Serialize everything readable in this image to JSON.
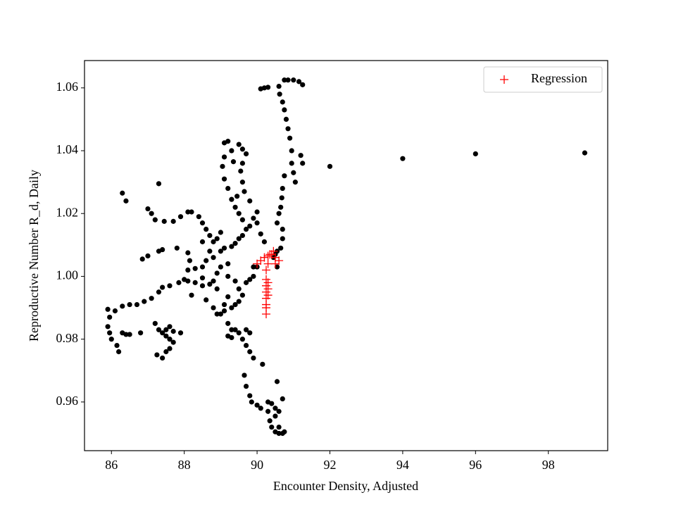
{
  "chart_data": {
    "type": "scatter",
    "x_label": "Encounter Density, Adjusted",
    "y_label": "Reproductive Number R_d, Daily",
    "xlim": [
      85.26,
      99.63
    ],
    "xticks": [
      86,
      88,
      90,
      92,
      94,
      96,
      98
    ],
    "ylim": [
      0.9445,
      1.0687
    ],
    "yticks": [
      0.96,
      0.98,
      {
        "value": 1,
        "label": "1.00"
      },
      1.02,
      1.04,
      1.06
    ],
    "legend": "upper right",
    "series": [
      {
        "color": "#000000",
        "marker": "circle",
        "x": [
          92.0,
          94.0,
          96.0,
          99.0,
          90.1,
          90.2,
          90.3,
          90.75,
          90.85,
          91.0,
          91.15,
          91.25,
          90.6,
          90.62,
          90.7,
          90.75,
          90.8,
          90.85,
          90.9,
          90.95,
          90.95,
          91.0,
          91.05,
          91.2,
          91.25,
          90.75,
          90.7,
          90.68,
          90.65,
          90.6,
          90.55,
          90.7,
          90.7,
          90.65,
          90.55,
          90.5,
          90.45,
          90.55,
          86.3,
          86.4,
          87.3,
          87.0,
          87.1,
          87.2,
          87.45,
          87.7,
          87.9,
          88.1,
          88.2,
          88.4,
          88.5,
          88.6,
          88.7,
          88.8,
          86.85,
          87.0,
          87.3,
          87.4,
          87.8,
          88.1,
          88.15,
          88.1,
          88.0,
          87.85,
          87.6,
          87.4,
          87.3,
          87.1,
          86.9,
          86.7,
          86.5,
          86.3,
          86.1,
          85.9,
          85.95,
          85.9,
          85.95,
          86.0,
          86.15,
          86.2,
          86.3,
          86.4,
          86.5,
          86.8,
          87.2,
          87.3,
          87.4,
          87.5,
          87.6,
          87.7,
          87.6,
          87.5,
          87.4,
          87.25,
          87.7,
          87.9,
          87.5,
          87.6,
          88.1,
          88.3,
          88.5,
          88.7,
          88.9,
          88.2,
          88.6,
          88.8,
          88.9,
          89.0,
          89.1,
          89.3,
          89.4,
          89.5,
          89.6,
          89.7,
          89.8,
          89.9,
          88.5,
          88.6,
          88.8,
          89.0,
          89.1,
          89.3,
          89.4,
          89.5,
          89.6,
          89.7,
          89.8,
          89.6,
          89.5,
          89.4,
          89.3,
          89.2,
          89.1,
          89.05,
          89.1,
          89.1,
          89.2,
          89.3,
          89.35,
          89.5,
          89.6,
          89.7,
          89.6,
          89.55,
          89.6,
          89.65,
          89.45,
          89.8,
          90.0,
          90.0,
          89.9,
          90.1,
          90.2,
          90.0,
          89.9,
          88.9,
          89.0,
          89.2,
          88.7,
          89.0,
          88.9,
          88.5,
          88.3,
          88.5,
          88.8,
          89.2,
          89.4,
          89.5,
          89.2,
          89.1,
          89.2,
          89.3,
          89.4,
          89.5,
          89.7,
          89.8,
          89.6,
          89.7,
          89.8,
          89.9,
          89.3,
          89.2,
          90.15,
          89.65,
          89.7,
          89.8,
          89.85,
          90.0,
          90.1,
          90.3,
          90.4,
          90.5,
          90.6,
          90.55,
          90.7,
          90.3,
          90.35,
          90.4,
          90.5,
          90.6,
          90.7,
          90.75,
          90.6,
          90.5
        ],
        "values": [
          1.035,
          1.0375,
          1.039,
          1.0393,
          1.0597,
          1.06,
          1.0602,
          1.0625,
          1.0625,
          1.0625,
          1.062,
          1.061,
          1.0605,
          1.058,
          1.0555,
          1.053,
          1.05,
          1.047,
          1.044,
          1.04,
          1.036,
          1.033,
          1.03,
          1.0385,
          1.036,
          1.032,
          1.028,
          1.025,
          1.022,
          1.02,
          1.017,
          1.015,
          1.012,
          1.009,
          1.008,
          1.007,
          1.006,
          1.003,
          1.0265,
          1.024,
          1.0295,
          1.0215,
          1.02,
          1.018,
          1.0175,
          1.0175,
          1.019,
          1.0205,
          1.0205,
          1.019,
          1.017,
          1.015,
          1.013,
          1.011,
          1.0055,
          1.0065,
          1.008,
          1.0085,
          1.009,
          1.0075,
          1.005,
          1.002,
          0.999,
          0.998,
          0.997,
          0.9965,
          0.995,
          0.993,
          0.992,
          0.991,
          0.991,
          0.9905,
          0.989,
          0.9895,
          0.987,
          0.984,
          0.982,
          0.98,
          0.978,
          0.976,
          0.982,
          0.9815,
          0.9815,
          0.982,
          0.985,
          0.983,
          0.982,
          0.981,
          0.98,
          0.979,
          0.977,
          0.976,
          0.974,
          0.975,
          0.9825,
          0.982,
          0.983,
          0.984,
          0.9985,
          0.998,
          0.997,
          0.9975,
          0.996,
          0.994,
          0.9925,
          0.99,
          0.988,
          0.988,
          0.989,
          0.99,
          0.991,
          0.992,
          0.994,
          0.998,
          0.999,
          1.0,
          1.003,
          1.005,
          1.006,
          1.008,
          1.009,
          1.0095,
          1.0105,
          1.012,
          1.013,
          1.015,
          1.016,
          1.018,
          1.02,
          1.022,
          1.0245,
          1.028,
          1.031,
          1.035,
          1.038,
          1.0425,
          1.043,
          1.04,
          1.0365,
          1.042,
          1.0405,
          1.039,
          1.036,
          1.0335,
          1.03,
          1.027,
          1.0255,
          1.024,
          1.0205,
          1.017,
          1.0185,
          1.0135,
          1.011,
          1.003,
          1.003,
          1.001,
          1.003,
          1.004,
          1.008,
          1.014,
          1.012,
          1.011,
          1.0025,
          0.9995,
          0.9985,
          1.0,
          0.9985,
          0.996,
          0.9935,
          0.991,
          0.985,
          0.983,
          0.983,
          0.982,
          0.983,
          0.982,
          0.98,
          0.978,
          0.976,
          0.974,
          0.9805,
          0.981,
          0.972,
          0.9685,
          0.965,
          0.962,
          0.96,
          0.959,
          0.958,
          0.96,
          0.9595,
          0.958,
          0.957,
          0.9665,
          0.961,
          0.957,
          0.954,
          0.952,
          0.9505,
          0.95,
          0.95,
          0.9505,
          0.952,
          0.9555
        ]
      },
      {
        "name": "Regression",
        "color": "#ff0000",
        "marker": "plus",
        "x": [
          90.1,
          90.2,
          90.3,
          90.4,
          90.5,
          90.6,
          90.5,
          90.0,
          90.3,
          90.25,
          90.25,
          90.25,
          90.25,
          90.25,
          90.25,
          90.25,
          90.25,
          90.35,
          90.45,
          90.3,
          90.3,
          90.3
        ],
        "values": [
          1.005,
          1.006,
          1.0065,
          1.007,
          1.006,
          1.005,
          1.004,
          1.004,
          1.004,
          1.002,
          0.999,
          0.997,
          0.995,
          0.993,
          0.991,
          0.99,
          0.988,
          1.007,
          1.008,
          0.994,
          0.996,
          0.998
        ]
      }
    ]
  }
}
